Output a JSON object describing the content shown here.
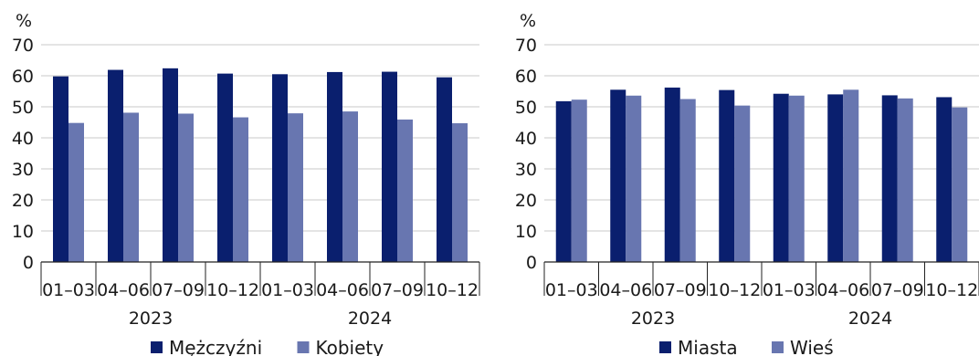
{
  "chart_data": [
    {
      "type": "bar",
      "ylabel": "%",
      "ylim": [
        0,
        70
      ],
      "yticks": [
        0,
        10,
        20,
        30,
        40,
        50,
        60,
        70
      ],
      "categories": [
        "01–03",
        "04–06",
        "07–09",
        "10–12",
        "01–03",
        "04–06",
        "07–09",
        "10–12"
      ],
      "groups": [
        {
          "label": "2023",
          "span": [
            0,
            3
          ]
        },
        {
          "label": "2024",
          "span": [
            4,
            7
          ]
        }
      ],
      "series": [
        {
          "name": "Mężczyźni",
          "color": "#0a1f6e",
          "values": [
            59.8,
            61.9,
            62.4,
            60.7,
            60.5,
            61.2,
            61.3,
            59.5
          ]
        },
        {
          "name": "Kobiety",
          "color": "#6876b0",
          "values": [
            44.8,
            48.1,
            47.8,
            46.6,
            47.9,
            48.5,
            45.9,
            44.7
          ]
        }
      ],
      "legend": "bottom"
    },
    {
      "type": "bar",
      "ylabel": "%",
      "ylim": [
        0,
        70
      ],
      "yticks": [
        0,
        10,
        20,
        30,
        40,
        50,
        60,
        70
      ],
      "categories": [
        "01–03",
        "04–06",
        "07–09",
        "10–12",
        "01–03",
        "04–06",
        "07–09",
        "10–12"
      ],
      "groups": [
        {
          "label": "2023",
          "span": [
            0,
            3
          ]
        },
        {
          "label": "2024",
          "span": [
            4,
            7
          ]
        }
      ],
      "series": [
        {
          "name": "Miasta",
          "color": "#0a1f6e",
          "values": [
            51.8,
            55.5,
            56.2,
            55.4,
            54.2,
            54.0,
            53.7,
            53.1
          ]
        },
        {
          "name": "Wieś",
          "color": "#6876b0",
          "values": [
            52.3,
            53.6,
            52.5,
            50.4,
            53.6,
            55.5,
            52.7,
            49.8
          ]
        }
      ],
      "legend": "bottom"
    }
  ]
}
